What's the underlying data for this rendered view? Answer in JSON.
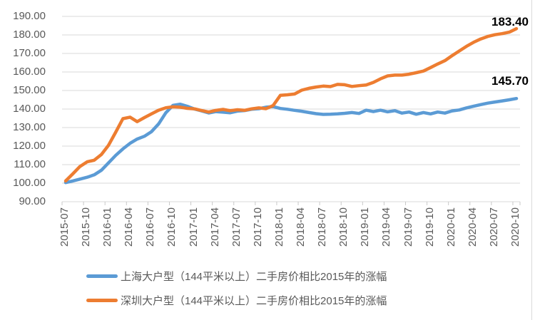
{
  "chart_data": {
    "type": "line",
    "title": "",
    "xlabel": "",
    "ylabel": "",
    "ylim": [
      90,
      190
    ],
    "ytick_step": 10,
    "grid": "horizontal",
    "legend_position": "bottom-left",
    "y_tick_labels": [
      "190.00",
      "180.00",
      "170.00",
      "160.00",
      "150.00",
      "140.00",
      "130.00",
      "120.00",
      "110.00",
      "100.00",
      "90.00"
    ],
    "x": [
      "2015-07",
      "2015-08",
      "2015-09",
      "2015-10",
      "2015-11",
      "2015-12",
      "2016-01",
      "2016-02",
      "2016-03",
      "2016-04",
      "2016-05",
      "2016-06",
      "2016-07",
      "2016-08",
      "2016-09",
      "2016-10",
      "2016-11",
      "2016-12",
      "2017-01",
      "2017-02",
      "2017-03",
      "2017-04",
      "2017-05",
      "2017-06",
      "2017-07",
      "2017-08",
      "2017-09",
      "2017-10",
      "2017-11",
      "2017-12",
      "2018-01",
      "2018-02",
      "2018-03",
      "2018-04",
      "2018-05",
      "2018-06",
      "2018-07",
      "2018-08",
      "2018-09",
      "2018-10",
      "2018-11",
      "2018-12",
      "2019-01",
      "2019-02",
      "2019-03",
      "2019-04",
      "2019-05",
      "2019-06",
      "2019-07",
      "2019-08",
      "2019-09",
      "2019-10",
      "2019-11",
      "2019-12",
      "2020-01",
      "2020-02",
      "2020-03",
      "2020-04",
      "2020-05",
      "2020-06",
      "2020-07",
      "2020-08",
      "2020-09",
      "2020-10"
    ],
    "x_tick_labels": [
      "2015-07",
      "2015-10",
      "2016-01",
      "2016-04",
      "2016-07",
      "2016-10",
      "2017-01",
      "2017-04",
      "2017-07",
      "2017-10",
      "2018-01",
      "2018-04",
      "2018-07",
      "2018-10",
      "2019-01",
      "2019-04",
      "2019-07",
      "2019-10",
      "2020-01",
      "2020-04",
      "2020-07",
      "2020-10"
    ],
    "series": [
      {
        "name": "上海大户型（144平米以上）二手房价相比2015年的涨幅",
        "color": "#5B9BD5",
        "end_label": "145.70",
        "values": [
          100.3,
          101.2,
          102.2,
          103.2,
          104.5,
          107.0,
          111.0,
          115.0,
          118.5,
          121.5,
          123.8,
          125.3,
          127.8,
          132.0,
          138.0,
          142.0,
          142.6,
          141.5,
          140.0,
          139.0,
          137.9,
          138.6,
          138.3,
          138.0,
          138.9,
          139.2,
          139.9,
          140.2,
          141.0,
          141.3,
          140.3,
          139.9,
          139.3,
          138.8,
          138.1,
          137.5,
          137.1,
          137.2,
          137.4,
          137.7,
          138.1,
          137.6,
          139.4,
          138.6,
          139.4,
          138.5,
          139.1,
          137.8,
          138.4,
          137.2,
          138.1,
          137.4,
          138.4,
          137.8,
          139.0,
          139.5,
          140.6,
          141.5,
          142.4,
          143.2,
          143.8,
          144.4,
          145.0,
          145.7
        ]
      },
      {
        "name": "深圳大户型（144平米以上）二手房价相比2015年的涨幅",
        "color": "#ED7D31",
        "end_label": "183.40",
        "values": [
          101.2,
          105.0,
          109.0,
          111.5,
          112.4,
          115.5,
          120.5,
          127.5,
          134.8,
          135.6,
          133.2,
          135.4,
          137.4,
          139.4,
          140.7,
          141.2,
          141.0,
          140.4,
          140.1,
          139.2,
          138.4,
          139.3,
          139.8,
          139.1,
          139.6,
          139.3,
          140.1,
          140.6,
          140.2,
          141.9,
          147.4,
          147.7,
          148.1,
          150.2,
          151.2,
          151.9,
          152.4,
          152.1,
          153.3,
          153.1,
          152.2,
          152.6,
          153.0,
          154.4,
          156.3,
          157.9,
          158.3,
          158.3,
          158.8,
          159.6,
          160.5,
          162.4,
          164.3,
          166.1,
          168.8,
          171.3,
          173.8,
          176.0,
          177.8,
          179.2,
          180.1,
          180.7,
          181.5,
          183.4
        ]
      }
    ],
    "style": {
      "gridline_color": "#D9D9D9",
      "tick_color": "#C8C8C8",
      "axis_text_color": "#595959",
      "data_label_color": "#000000",
      "line_width": 4.5
    }
  }
}
